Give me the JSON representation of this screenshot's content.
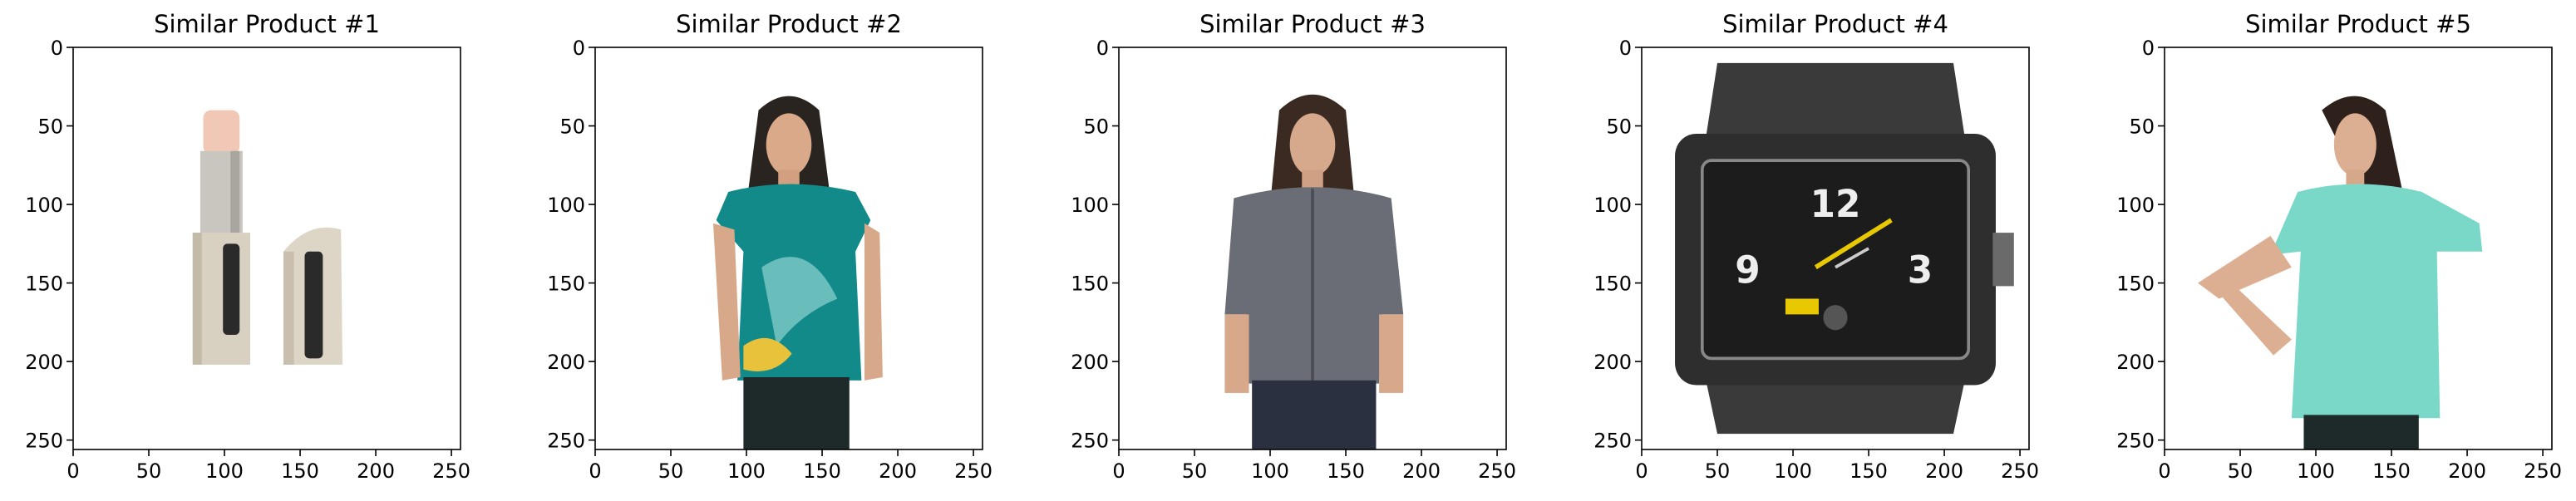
{
  "chart_data": [
    {
      "type": "image",
      "title": "Similar Product #1",
      "image": "lipstick",
      "xticks": [
        0,
        50,
        100,
        150,
        200,
        250
      ],
      "yticks": [
        0,
        50,
        100,
        150,
        200,
        250
      ],
      "xlim": [
        0,
        256
      ],
      "ylim": [
        256,
        0
      ]
    },
    {
      "type": "image",
      "title": "Similar Product #2",
      "image": "woman-teal-floral-top",
      "xticks": [
        0,
        50,
        100,
        150,
        200,
        250
      ],
      "yticks": [
        0,
        50,
        100,
        150,
        200,
        250
      ],
      "xlim": [
        0,
        256
      ],
      "ylim": [
        256,
        0
      ]
    },
    {
      "type": "image",
      "title": "Similar Product #3",
      "image": "woman-grey-shirt",
      "xticks": [
        0,
        50,
        100,
        150,
        200,
        250
      ],
      "yticks": [
        0,
        50,
        100,
        150,
        200,
        250
      ],
      "xlim": [
        0,
        256
      ],
      "ylim": [
        256,
        0
      ]
    },
    {
      "type": "image",
      "title": "Similar Product #4",
      "image": "black-wristwatch",
      "xticks": [
        0,
        50,
        100,
        150,
        200,
        250
      ],
      "yticks": [
        0,
        50,
        100,
        150,
        200,
        250
      ],
      "xlim": [
        0,
        256
      ],
      "ylim": [
        256,
        0
      ]
    },
    {
      "type": "image",
      "title": "Similar Product #5",
      "image": "woman-mint-top",
      "xticks": [
        0,
        50,
        100,
        150,
        200,
        250
      ],
      "yticks": [
        0,
        50,
        100,
        150,
        200,
        250
      ],
      "xlim": [
        0,
        256
      ],
      "ylim": [
        256,
        0
      ]
    }
  ]
}
